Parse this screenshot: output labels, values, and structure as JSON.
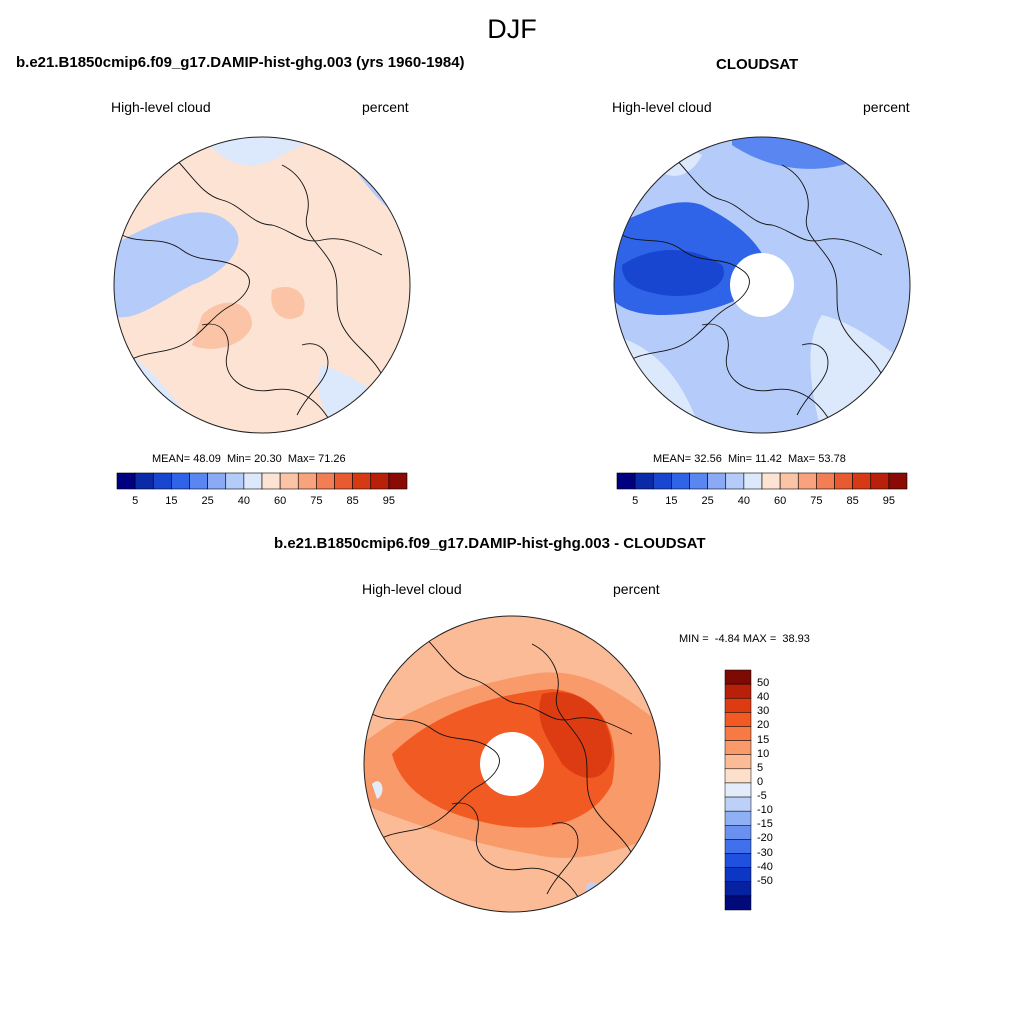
{
  "page": {
    "title": "DJF"
  },
  "panels": [
    {
      "title": "b.e21.B1850cmip6.f09_g17.DAMIP-hist-ghg.003 (yrs 1960-1984)",
      "left_label": "High-level cloud",
      "right_label": "percent",
      "stats": {
        "mean_label": "MEAN=",
        "mean": "48.09",
        "min_label": "Min=",
        "min": "20.30",
        "max_label": "Max=",
        "max": "71.26"
      },
      "map_style": "model"
    },
    {
      "title": "CLOUDSAT",
      "left_label": "High-level cloud",
      "right_label": "percent",
      "stats": {
        "mean_label": "MEAN=",
        "mean": "32.56",
        "min_label": "Min=",
        "min": "11.42",
        "max_label": "Max=",
        "max": "53.78"
      },
      "map_style": "obs"
    },
    {
      "title": "b.e21.B1850cmip6.f09_g17.DAMIP-hist-ghg.003 - CLOUDSAT",
      "left_label": "High-level cloud",
      "right_label": "percent",
      "minmax": {
        "min_label": "MIN =",
        "min": "-4.84",
        "max_label": "MAX =",
        "max": "38.93"
      },
      "map_style": "diff"
    }
  ],
  "colorbar_horizontal": {
    "colors": [
      "#000080",
      "#0a2aa8",
      "#1846d0",
      "#2f64e8",
      "#5a86f2",
      "#8aaaf6",
      "#b5cbf9",
      "#dce8fc",
      "#fde3d3",
      "#fbc4a6",
      "#f8a27e",
      "#f27e56",
      "#e85a30",
      "#d63a14",
      "#b8200a",
      "#8a0a05"
    ],
    "tick_labels": [
      "5",
      "15",
      "25",
      "40",
      "60",
      "75",
      "85",
      "95"
    ]
  },
  "colorbar_vertical": {
    "colors_top_to_bottom": [
      "#7e0a04",
      "#b8200a",
      "#dd3c12",
      "#f25a24",
      "#f77a44",
      "#f99a6a",
      "#fbbb96",
      "#fde0cc",
      "#e2ecfa",
      "#bcd0f8",
      "#90b0f4",
      "#6a90f0",
      "#4070ec",
      "#2050e0",
      "#0c36c4",
      "#0622a0",
      "#000a7a"
    ],
    "tick_labels": [
      "50",
      "40",
      "30",
      "20",
      "15",
      "10",
      "5",
      "0",
      "-5",
      "-10",
      "-15",
      "-20",
      "-30",
      "-40",
      "-50"
    ]
  }
}
